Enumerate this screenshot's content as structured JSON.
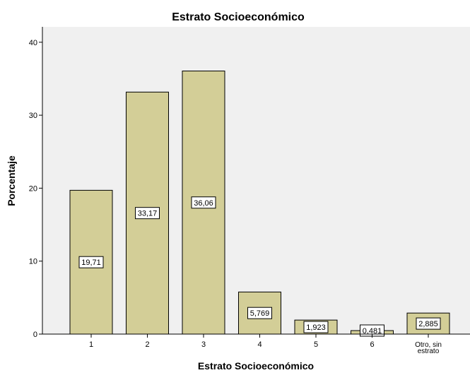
{
  "chart_data": {
    "type": "bar",
    "title": "Estrato Socioeconómico",
    "xlabel": "Estrato Socioeconómico",
    "ylabel": "Porcentaje",
    "categories": [
      [
        "1"
      ],
      [
        "2"
      ],
      [
        "3"
      ],
      [
        "4"
      ],
      [
        "5"
      ],
      [
        "6"
      ],
      [
        "Otro, sin",
        "estrato"
      ]
    ],
    "values": [
      19.71,
      33.17,
      36.06,
      5.769,
      1.923,
      0.481,
      2.885
    ],
    "value_labels": [
      "19,71",
      "33,17",
      "36,06",
      "5,769",
      "1,923",
      "0,481",
      "2,885"
    ],
    "yticks": [
      0,
      10,
      20,
      30,
      40
    ],
    "ytick_labels": [
      "0",
      "10",
      "20",
      "30",
      "40"
    ],
    "ylim": [
      0,
      42
    ],
    "grid": false,
    "colors": {
      "plot_background": "#F0F0F0",
      "bar_fill": "#D3CE97",
      "bar_stroke": "#000000",
      "label_background": "#FFFFFF"
    }
  }
}
